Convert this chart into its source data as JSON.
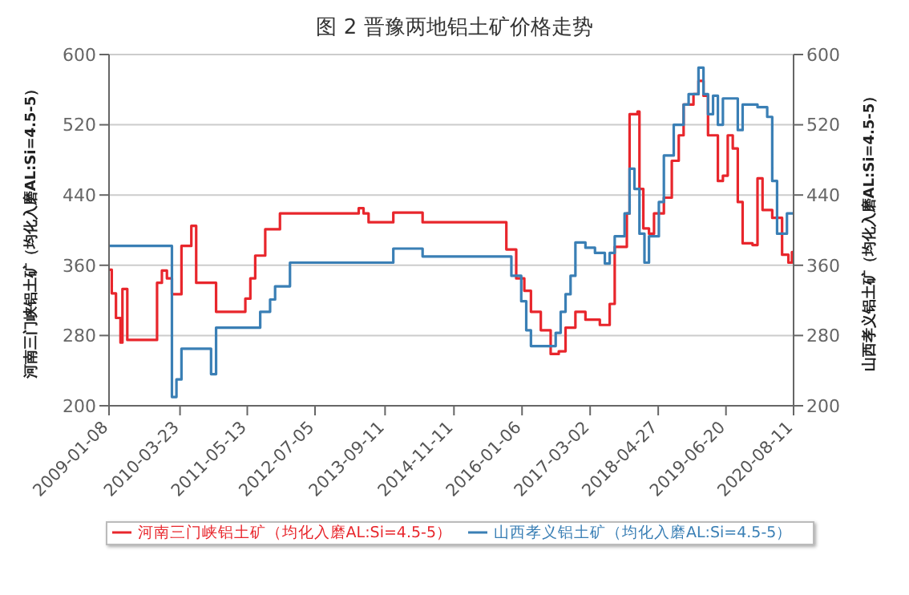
{
  "chart_data": {
    "type": "step",
    "title": "图 2  晋豫两地铝土矿价格走势",
    "ylabel": "河南三门峡铝土矿（均化入磨AL:Si=4.5-5）",
    "y2label": "山西孝义铝土矿（均化入磨AL:Si=4.5-5）",
    "xlim": [
      "2009-01-08",
      "2020-08-11"
    ],
    "xticks": [
      "2009-01-08",
      "2010-03-23",
      "2011-05-13",
      "2012-07-05",
      "2013-09-11",
      "2014-11-11",
      "2016-01-06",
      "2017-03-02",
      "2018-04-27",
      "2019-06-20",
      "2020-08-11"
    ],
    "ylim": [
      200,
      600
    ],
    "yticks": [
      200,
      280,
      360,
      440,
      520,
      600
    ],
    "y2lim": [
      200,
      600
    ],
    "y2ticks": [
      200,
      280,
      360,
      440,
      520,
      600
    ],
    "grid": "y",
    "legend": "bottom",
    "marker": "none",
    "line_style": "solid",
    "series": [
      {
        "name": "河南三门峡铝土矿（均化入磨AL:Si=4.5-5）",
        "color": "#e8262c",
        "x": [
          "2009-01-08",
          "2009-01-25",
          "2009-02-20",
          "2009-03-20",
          "2009-04",
          "2009-05",
          "2009-11",
          "2009-12",
          "2010-01",
          "2010-02",
          "2010-04",
          "2010-06",
          "2010-07",
          "2010-11",
          "2011-05",
          "2011-06",
          "2011-07",
          "2011-09",
          "2011-12",
          "2013-04",
          "2013-05",
          "2013-06",
          "2013-11",
          "2014-05",
          "2015-10",
          "2015-12",
          "2016-01-20",
          "2016-03",
          "2016-05",
          "2016-07",
          "2016-08-20",
          "2016-10",
          "2016-12",
          "2017-02",
          "2017-05",
          "2017-07",
          "2017-08",
          "2017-10-15",
          "2017-11",
          "2017-12-20",
          "2018-01",
          "2018-01-25",
          "2018-03",
          "2018-04",
          "2018-06",
          "2018-07-20",
          "2018-09",
          "2018-10",
          "2018-12",
          "2019-01",
          "2019-02",
          "2019-03",
          "2019-05",
          "2019-06",
          "2019-07",
          "2019-08",
          "2019-09",
          "2019-10",
          "2019-12",
          "2020-01",
          "2020-02",
          "2020-04",
          "2020-06",
          "2020-07-10",
          "2020-08-01",
          "2020-08-11"
        ],
        "values": [
          355,
          328,
          300,
          272,
          333,
          275,
          340,
          354,
          345,
          327,
          382,
          405,
          340,
          307,
          322,
          345,
          371,
          401,
          419,
          425,
          419,
          409,
          420,
          409,
          378,
          345,
          331,
          307,
          286,
          259,
          262,
          289,
          307,
          298,
          292,
          316,
          381,
          419,
          532,
          535,
          447,
          402,
          396,
          419,
          437,
          479,
          508,
          543,
          555,
          570,
          553,
          508,
          456,
          462,
          508,
          493,
          432,
          385,
          383,
          459,
          423,
          414,
          372,
          363,
          375,
          375
        ]
      },
      {
        "name": "山西孝义铝土矿（均化入磨AL:Si=4.5-5）",
        "color": "#3a7fb5",
        "axis": "y2",
        "x": [
          "2009-01-08",
          "2010-02",
          "2010-03",
          "2010-04",
          "2010-10",
          "2010-11",
          "2011-08",
          "2011-10",
          "2011-11",
          "2012-02",
          "2013-11",
          "2014-05",
          "2015-11",
          "2016-01",
          "2016-02",
          "2016-03",
          "2016-08",
          "2016-09",
          "2016-10",
          "2016-11",
          "2016-12",
          "2017-02",
          "2017-04",
          "2017-06",
          "2017-07",
          "2017-08",
          "2017-10",
          "2017-11",
          "2017-12",
          "2018-01",
          "2018-02",
          "2018-03",
          "2018-05",
          "2018-06",
          "2018-08",
          "2018-10",
          "2018-11",
          "2019-01",
          "2019-02",
          "2019-03",
          "2019-04",
          "2019-05",
          "2019-06",
          "2019-09",
          "2019-10",
          "2020-01",
          "2020-03",
          "2020-04",
          "2020-05",
          "2020-07",
          "2020-08-11"
        ],
        "values": [
          382,
          210,
          230,
          265,
          236,
          289,
          307,
          321,
          336,
          363,
          379,
          370,
          348,
          319,
          286,
          268,
          283,
          307,
          327,
          348,
          386,
          380,
          374,
          362,
          374,
          393,
          419,
          470,
          447,
          396,
          363,
          393,
          432,
          485,
          520,
          543,
          555,
          585,
          555,
          532,
          553,
          520,
          550,
          514,
          543,
          540,
          529,
          456,
          396,
          419,
          419
        ]
      }
    ]
  }
}
